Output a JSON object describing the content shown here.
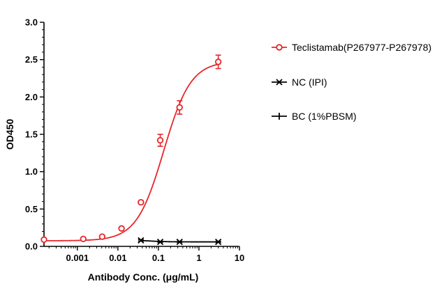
{
  "chart_data": {
    "type": "scatter",
    "xlabel": "Antibody Conc. (μg/mL)",
    "ylabel": "OD450",
    "x_scale": "log",
    "xlim": [
      0.00015,
      10
    ],
    "ylim": [
      0,
      3.0
    ],
    "x_ticks": [
      {
        "value": 0.001,
        "label": "0.001"
      },
      {
        "value": 0.01,
        "label": "0.01"
      },
      {
        "value": 0.1,
        "label": "0.1"
      },
      {
        "value": 1,
        "label": "1"
      },
      {
        "value": 10,
        "label": "10"
      }
    ],
    "y_ticks": [
      {
        "value": 0,
        "label": "0.0"
      },
      {
        "value": 0.5,
        "label": "0.5"
      },
      {
        "value": 1.0,
        "label": "1.0"
      },
      {
        "value": 1.5,
        "label": "1.5"
      },
      {
        "value": 2.0,
        "label": "2.0"
      },
      {
        "value": 2.5,
        "label": "2.5"
      },
      {
        "value": 3.0,
        "label": "3.0"
      }
    ],
    "grid": false,
    "legend_position": "right",
    "series": [
      {
        "name": "Teclistamab(P267977-P267978)",
        "color": "#e8262a",
        "marker": "circle",
        "fit": {
          "bottom": 0.075,
          "top": 2.48,
          "ec50": 0.135,
          "hill": 1.3
        },
        "points": [
          {
            "x": 0.00015,
            "y": 0.09,
            "err": 0.01
          },
          {
            "x": 0.0014,
            "y": 0.1,
            "err": 0.01
          },
          {
            "x": 0.0041,
            "y": 0.13,
            "err": 0.01
          },
          {
            "x": 0.0123,
            "y": 0.24,
            "err": 0.01
          },
          {
            "x": 0.037,
            "y": 0.59,
            "err": 0.02
          },
          {
            "x": 0.111,
            "y": 1.42,
            "err": 0.08
          },
          {
            "x": 0.333,
            "y": 1.86,
            "err": 0.09
          },
          {
            "x": 3.0,
            "y": 2.47,
            "err": 0.09
          }
        ]
      },
      {
        "name": "NC (IPI)",
        "color": "#000000",
        "marker": "x",
        "fit": {
          "bottom": 0.06,
          "top": 0.085,
          "ec50": 0.06,
          "hill": -2
        },
        "points": [
          {
            "x": 0.037,
            "y": 0.08,
            "err": 0.01
          },
          {
            "x": 0.111,
            "y": 0.06,
            "err": 0.005
          },
          {
            "x": 0.333,
            "y": 0.06,
            "err": 0.005
          },
          {
            "x": 3.0,
            "y": 0.06,
            "err": 0.005
          }
        ]
      },
      {
        "name": "BC (1%PBSM)",
        "color": "#000000",
        "marker": "plus",
        "points": []
      }
    ]
  }
}
